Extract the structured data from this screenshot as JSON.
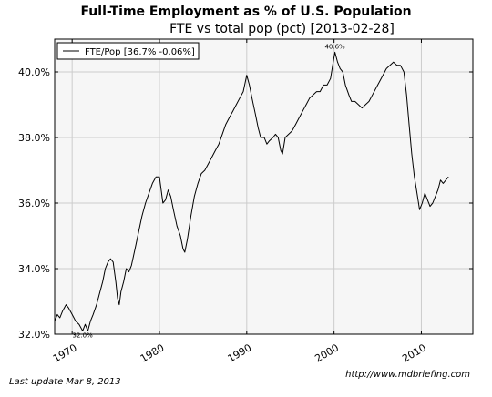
{
  "page": {
    "title": "Full-Time Employment as % of U.S. Population",
    "last_update": "Last update Mar  8, 2013",
    "source_url": "http://www.mdbriefing.com"
  },
  "chart_data": {
    "type": "line",
    "title": "FTE vs total pop (pct) [2013-02-28]",
    "xlabel": "",
    "ylabel": "",
    "xlim": [
      1968,
      2015.9
    ],
    "ylim": [
      32.0,
      41.0
    ],
    "x_ticks": [
      1970,
      1980,
      1990,
      2000,
      2010
    ],
    "x_tick_labels": [
      "1970",
      "1980",
      "1990",
      "2000",
      "2010"
    ],
    "y_ticks": [
      32.0,
      34.0,
      36.0,
      38.0,
      40.0
    ],
    "y_tick_labels": [
      "32.0%",
      "34.0%",
      "36.0%",
      "38.0%",
      "40.0%"
    ],
    "grid": true,
    "legend_position": "top-left",
    "colors": {
      "line": "#000000",
      "plot_background": "#f6f6f6",
      "grid": "#cccccc"
    },
    "series": [
      {
        "name": "FTE/Pop [36.7% -0.06%]",
        "points": [
          [
            1968.0,
            32.4
          ],
          [
            1968.3,
            32.6
          ],
          [
            1968.6,
            32.5
          ],
          [
            1968.9,
            32.7
          ],
          [
            1969.3,
            32.9
          ],
          [
            1969.6,
            32.8
          ],
          [
            1970.0,
            32.6
          ],
          [
            1970.4,
            32.4
          ],
          [
            1970.8,
            32.3
          ],
          [
            1971.2,
            32.1
          ],
          [
            1971.5,
            32.3
          ],
          [
            1971.8,
            32.1
          ],
          [
            1972.1,
            32.4
          ],
          [
            1972.4,
            32.6
          ],
          [
            1972.8,
            32.9
          ],
          [
            1973.2,
            33.3
          ],
          [
            1973.5,
            33.6
          ],
          [
            1973.8,
            34.0
          ],
          [
            1974.1,
            34.2
          ],
          [
            1974.4,
            34.3
          ],
          [
            1974.7,
            34.2
          ],
          [
            1975.0,
            33.6
          ],
          [
            1975.2,
            33.1
          ],
          [
            1975.4,
            32.9
          ],
          [
            1975.6,
            33.3
          ],
          [
            1975.9,
            33.6
          ],
          [
            1976.2,
            34.0
          ],
          [
            1976.5,
            33.9
          ],
          [
            1976.8,
            34.1
          ],
          [
            1977.2,
            34.6
          ],
          [
            1977.6,
            35.1
          ],
          [
            1978.0,
            35.6
          ],
          [
            1978.4,
            36.0
          ],
          [
            1978.8,
            36.3
          ],
          [
            1979.2,
            36.6
          ],
          [
            1979.6,
            36.8
          ],
          [
            1980.0,
            36.8
          ],
          [
            1980.2,
            36.4
          ],
          [
            1980.4,
            36.0
          ],
          [
            1980.7,
            36.1
          ],
          [
            1981.0,
            36.4
          ],
          [
            1981.3,
            36.2
          ],
          [
            1981.6,
            35.8
          ],
          [
            1982.0,
            35.3
          ],
          [
            1982.4,
            35.0
          ],
          [
            1982.7,
            34.6
          ],
          [
            1982.9,
            34.5
          ],
          [
            1983.2,
            34.9
          ],
          [
            1983.6,
            35.6
          ],
          [
            1984.0,
            36.2
          ],
          [
            1984.4,
            36.6
          ],
          [
            1984.8,
            36.9
          ],
          [
            1985.2,
            37.0
          ],
          [
            1985.6,
            37.2
          ],
          [
            1986.0,
            37.4
          ],
          [
            1986.4,
            37.6
          ],
          [
            1986.8,
            37.8
          ],
          [
            1987.2,
            38.1
          ],
          [
            1987.6,
            38.4
          ],
          [
            1988.0,
            38.6
          ],
          [
            1988.4,
            38.8
          ],
          [
            1988.8,
            39.0
          ],
          [
            1989.2,
            39.2
          ],
          [
            1989.6,
            39.4
          ],
          [
            1990.0,
            39.9
          ],
          [
            1990.3,
            39.6
          ],
          [
            1990.6,
            39.2
          ],
          [
            1991.0,
            38.7
          ],
          [
            1991.3,
            38.3
          ],
          [
            1991.6,
            38.0
          ],
          [
            1992.0,
            38.0
          ],
          [
            1992.3,
            37.8
          ],
          [
            1992.6,
            37.9
          ],
          [
            1993.0,
            38.0
          ],
          [
            1993.3,
            38.1
          ],
          [
            1993.6,
            38.0
          ],
          [
            1993.9,
            37.6
          ],
          [
            1994.1,
            37.5
          ],
          [
            1994.4,
            38.0
          ],
          [
            1994.8,
            38.1
          ],
          [
            1995.2,
            38.2
          ],
          [
            1995.6,
            38.4
          ],
          [
            1996.0,
            38.6
          ],
          [
            1996.4,
            38.8
          ],
          [
            1996.8,
            39.0
          ],
          [
            1997.2,
            39.2
          ],
          [
            1997.6,
            39.3
          ],
          [
            1998.0,
            39.4
          ],
          [
            1998.4,
            39.4
          ],
          [
            1998.8,
            39.6
          ],
          [
            1999.2,
            39.6
          ],
          [
            1999.6,
            39.8
          ],
          [
            1999.9,
            40.3
          ],
          [
            2000.1,
            40.6
          ],
          [
            2000.4,
            40.3
          ],
          [
            2000.7,
            40.1
          ],
          [
            2001.0,
            40.0
          ],
          [
            2001.3,
            39.6
          ],
          [
            2001.7,
            39.3
          ],
          [
            2002.0,
            39.1
          ],
          [
            2002.4,
            39.1
          ],
          [
            2002.8,
            39.0
          ],
          [
            2003.2,
            38.9
          ],
          [
            2003.6,
            39.0
          ],
          [
            2004.0,
            39.1
          ],
          [
            2004.4,
            39.3
          ],
          [
            2004.8,
            39.5
          ],
          [
            2005.2,
            39.7
          ],
          [
            2005.6,
            39.9
          ],
          [
            2006.0,
            40.1
          ],
          [
            2006.4,
            40.2
          ],
          [
            2006.8,
            40.3
          ],
          [
            2007.2,
            40.2
          ],
          [
            2007.6,
            40.2
          ],
          [
            2008.0,
            40.0
          ],
          [
            2008.3,
            39.3
          ],
          [
            2008.6,
            38.4
          ],
          [
            2008.9,
            37.5
          ],
          [
            2009.2,
            36.8
          ],
          [
            2009.5,
            36.3
          ],
          [
            2009.8,
            35.8
          ],
          [
            2010.1,
            36.0
          ],
          [
            2010.4,
            36.3
          ],
          [
            2010.7,
            36.1
          ],
          [
            2011.0,
            35.9
          ],
          [
            2011.3,
            36.0
          ],
          [
            2011.6,
            36.2
          ],
          [
            2011.9,
            36.4
          ],
          [
            2012.2,
            36.7
          ],
          [
            2012.5,
            36.6
          ],
          [
            2012.8,
            36.7
          ],
          [
            2013.1,
            36.8
          ]
        ]
      }
    ],
    "annotations": [
      {
        "text": "40.6%",
        "x": 2000.1,
        "y": 40.6
      },
      {
        "text": "32.0%",
        "x": 1971.2,
        "y": 32.1
      }
    ]
  }
}
